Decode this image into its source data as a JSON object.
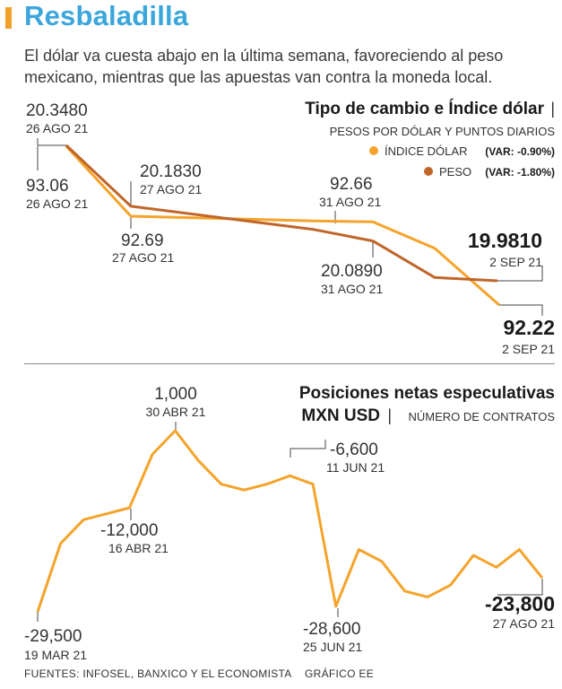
{
  "header": {
    "title": "Resbaladilla",
    "subtitle": "El dólar va cuesta abajo en la última semana, favoreciendo al peso mexicano, mientras que las apuestas van contra la moneda local."
  },
  "colors": {
    "indice": "#f5a32a",
    "peso": "#c0662a",
    "title": "#3aa6dc",
    "accent_bar": "#f0a028"
  },
  "chart_data": [
    {
      "type": "line",
      "title": "Tipo de cambio e Índice dólar",
      "title_sep": "|",
      "units": "PESOS POR DÓLAR Y PUNTOS DIARIOS",
      "legend_position": "top-right",
      "series": [
        {
          "name": "ÍNDICE DÓLAR",
          "var": "(VAR: -0.90%)",
          "color": "#f5a32a",
          "values": [
            93.06,
            92.69,
            92.66,
            92.22
          ]
        },
        {
          "name": "PESO",
          "var": "(VAR: -1.80%)",
          "color": "#c0662a",
          "values": [
            20.348,
            20.183,
            20.089,
            19.981
          ]
        }
      ],
      "annotations": [
        {
          "value": "20.3480",
          "date": "26 AGO 21"
        },
        {
          "value": "93.06",
          "date": "26 AGO 21"
        },
        {
          "value": "20.1830",
          "date": "27 AGO 21"
        },
        {
          "value": "92.69",
          "date": "27 AGO 21"
        },
        {
          "value": "92.66",
          "date": "31 AGO 21"
        },
        {
          "value": "20.0890",
          "date": "31 AGO 21"
        },
        {
          "value": "19.9810",
          "date": "2 SEP 21"
        },
        {
          "value": "92.22",
          "date": "2 SEP 21"
        }
      ]
    },
    {
      "type": "line",
      "title_line1": "Posiciones netas especulativas",
      "title_line2": "MXN USD",
      "title_sep": "|",
      "units": "NÚMERO DE CONTRATOS",
      "series": [
        {
          "name": "Posiciones netas especulativas MXN USD",
          "color": "#f5a32a",
          "values": [
            -29500,
            -18000,
            -14000,
            -13000,
            -12000,
            -3000,
            1000,
            -4000,
            -8000,
            -9000,
            -8000,
            -6600,
            -8000,
            -28600,
            -19000,
            -21000,
            -26000,
            -27000,
            -25000,
            -20000,
            -22000,
            -19000,
            -23800
          ]
        }
      ],
      "annotations": [
        {
          "value": "1,000",
          "date": "30 ABR 21"
        },
        {
          "value": "-6,600",
          "date": "11 JUN 21"
        },
        {
          "value": "-12,000",
          "date": "16 ABR 21"
        },
        {
          "value": "-29,500",
          "date": "19 MAR 21"
        },
        {
          "value": "-28,600",
          "date": "25 JUN 21"
        },
        {
          "value": "-23,800",
          "date": "27 AGO 21"
        }
      ]
    }
  ],
  "footer": {
    "sources": "FUENTES: INFOSEL, BANXICO Y EL ECONOMISTA",
    "credit": "GRÁFICO EE"
  }
}
